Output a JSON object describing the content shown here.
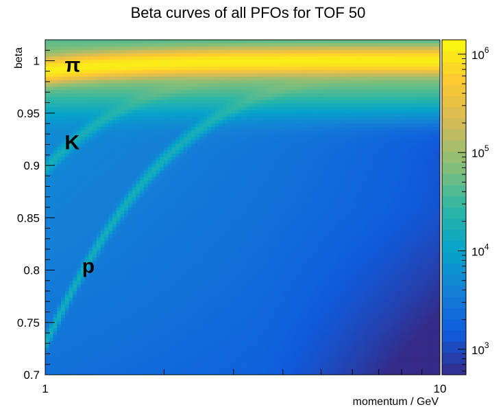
{
  "chart_data": {
    "type": "heatmap",
    "title": "Beta curves of all PFOs for TOF 50",
    "xlabel": "momentum / GeV",
    "ylabel": "beta",
    "xscale": "log",
    "xlim": [
      1,
      10
    ],
    "ylim": [
      0.7,
      1.02
    ],
    "x_ticks": [
      {
        "value": 1,
        "label": "1"
      },
      {
        "value": 10,
        "label": "10"
      }
    ],
    "y_ticks": [
      {
        "value": 0.7,
        "label": "0.7"
      },
      {
        "value": 0.75,
        "label": "0.75"
      },
      {
        "value": 0.8,
        "label": "0.8"
      },
      {
        "value": 0.85,
        "label": "0.85"
      },
      {
        "value": 0.9,
        "label": "0.9"
      },
      {
        "value": 0.95,
        "label": "0.95"
      },
      {
        "value": 1,
        "label": "1"
      }
    ],
    "colorbar": {
      "scale": "log",
      "range": [
        550,
        1400000
      ],
      "ticks": [
        {
          "value": 1000,
          "mantissa": "10",
          "exponent": "3"
        },
        {
          "value": 10000,
          "mantissa": "10",
          "exponent": "4"
        },
        {
          "value": 100000,
          "mantissa": "10",
          "exponent": "5"
        },
        {
          "value": 1000000,
          "mantissa": "10",
          "exponent": "6"
        }
      ]
    },
    "grid": false,
    "colormap": [
      "#352a87",
      "#0f5cdd",
      "#1481d6",
      "#06a4ca",
      "#2eb7a4",
      "#87bf77",
      "#d1bb59",
      "#fec832",
      "#f9fb0e"
    ],
    "bands": [
      {
        "label": "π",
        "mass_gev": 0.1396,
        "label_at": {
          "p": 1.12,
          "beta": 0.996
        }
      },
      {
        "label": "K",
        "mass_gev": 0.4937,
        "label_at": {
          "p": 1.12,
          "beta": 0.922
        }
      },
      {
        "label": "p",
        "mass_gev": 0.9383,
        "label_at": {
          "p": 1.24,
          "beta": 0.804
        }
      }
    ]
  }
}
